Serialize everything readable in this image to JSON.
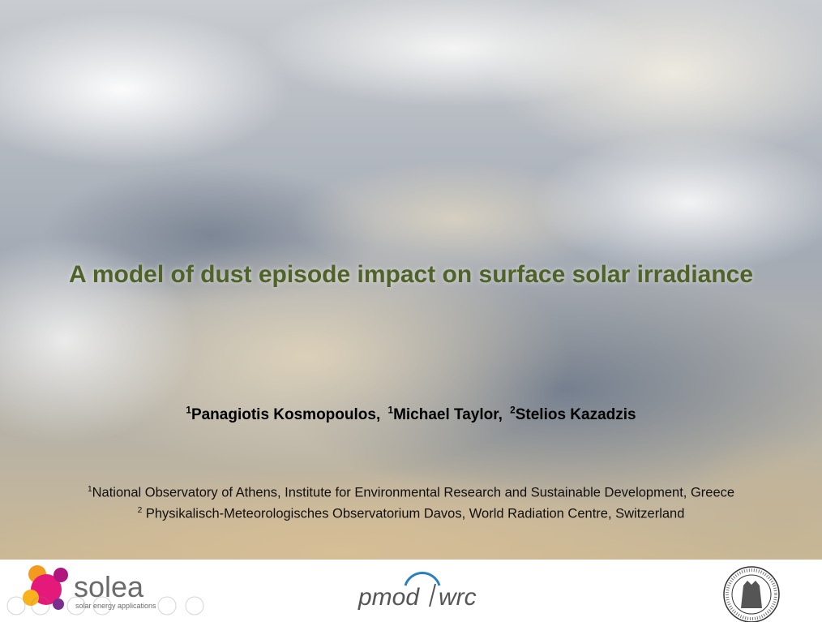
{
  "slide": {
    "title": "A model of dust episode impact on surface solar irradiance",
    "authors": [
      {
        "sup": "1",
        "name": "Panagiotis Kosmopoulos,"
      },
      {
        "sup": "1",
        "name": "Michael Taylor,"
      },
      {
        "sup": "2",
        "name": "Stelios Kazadzis"
      }
    ],
    "affiliations": [
      {
        "sup": "1",
        "text": "National Observatory of Athens, Institute for Environmental Research and Sustainable Development, Greece"
      },
      {
        "sup": "2",
        "text": "Physikalisch-Meteorologisches Observatorium Davos, World Radiation Centre, Switzerland"
      }
    ],
    "logos": {
      "solea": {
        "name": "solea",
        "tagline": "solar energy applications"
      },
      "pmod": {
        "left": "pmod",
        "right": "wrc"
      }
    }
  }
}
